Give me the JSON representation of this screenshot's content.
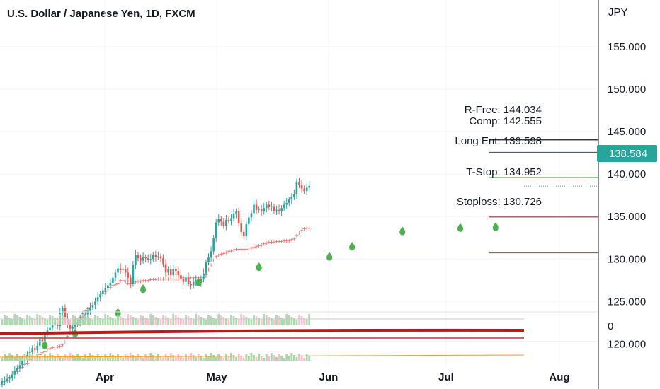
{
  "header": {
    "title": "U.S. Dollar / Japanese Yen, 1D, FXCM",
    "currency": "JPY"
  },
  "current_price": "138.584",
  "indicator": {
    "zero_label": "0"
  },
  "levels": [
    {
      "label": "R-Free: 144.034",
      "value": 144.034,
      "color": "#131722"
    },
    {
      "label": "Comp: 142.555",
      "value": 142.555,
      "color": "#3b5ba5"
    },
    {
      "label": "Long Ent: 139.598",
      "value": 139.598,
      "color": "#4caf50"
    },
    {
      "label": "T-Stop: 134.952",
      "value": 134.952,
      "color": "#8b3a3a"
    },
    {
      "label": "Stoploss: 130.726",
      "value": 130.726,
      "color": "#e53935"
    }
  ],
  "colors": {
    "up": "#26a69a",
    "down": "#ef5350",
    "signal": "#4caf50",
    "trail": "#ef5350",
    "price_tag": "#26a69a"
  },
  "chart_data": {
    "type": "candlestick",
    "title": "U.S. Dollar / Japanese Yen, 1D, FXCM",
    "ylabel": "JPY",
    "ylim": [
      114.7,
      160.5
    ],
    "y_ticks": [
      "155.000",
      "150.000",
      "145.000",
      "140.000",
      "135.000",
      "130.000",
      "125.000",
      "120.000"
    ],
    "x_ticks": [
      "Apr",
      "May",
      "Jun",
      "Jul",
      "Aug"
    ],
    "close": [
      115.6,
      115.7,
      115.9,
      116.0,
      116.4,
      116.8,
      117.2,
      117.5,
      118.0,
      118.3,
      118.7,
      119.1,
      119.5,
      119.3,
      119.8,
      120.5,
      120.2,
      121.2,
      121.6,
      121.9,
      122.3,
      122.6,
      122.1,
      123.6,
      124.2,
      123.0,
      122.2,
      121.8,
      122.0,
      122.3,
      122.6,
      122.9,
      123.3,
      123.5,
      123.9,
      124.3,
      124.6,
      125.0,
      125.5,
      125.9,
      126.3,
      126.6,
      126.9,
      127.2,
      127.8,
      128.4,
      128.9,
      128.7,
      128.8,
      128.4,
      127.8,
      127.1,
      129.3,
      130.5,
      130.1,
      129.8,
      130.2,
      130.1,
      129.9,
      130.0,
      130.5,
      130.2,
      130.3,
      130.1,
      129.4,
      128.4,
      128.8,
      128.1,
      128.8,
      128.6,
      128.1,
      127.7,
      127.3,
      127.8,
      127.1,
      126.9,
      127.3,
      127.5,
      127.2,
      127.6,
      128.3,
      129.6,
      130.2,
      130.9,
      132.5,
      134.3,
      134.7,
      134.4,
      133.9,
      134.6,
      134.5,
      134.8,
      135.3,
      135.6,
      134.2,
      133.2,
      132.7,
      134.1,
      134.9,
      135.4,
      136.4,
      135.8,
      135.9,
      135.6,
      136.0,
      136.4,
      136.1,
      136.2,
      135.7,
      135.8,
      135.6,
      136.0,
      136.4,
      136.6,
      137.0,
      137.3,
      137.6,
      139.1,
      138.7,
      138.3,
      138.0,
      138.4,
      138.6
    ],
    "trailing_stop": [
      115.3,
      115.6,
      115.8,
      116.1,
      116.3,
      116.6,
      116.8,
      117.1,
      117.3,
      117.6,
      117.8,
      118.2,
      118.3,
      118.5,
      118.6,
      118.8,
      119.0,
      119.2,
      119.4,
      119.5,
      119.6,
      119.7,
      119.7,
      119.8,
      119.9,
      120.3,
      120.9,
      121.3,
      121.9,
      122.4,
      122.8,
      123.2,
      123.6,
      123.9,
      124.2,
      124.5,
      124.8,
      125.1,
      125.4,
      125.7,
      126.0,
      126.2,
      126.5,
      126.7,
      126.9,
      127.0,
      127.2,
      127.5,
      127.5,
      127.4,
      127.2,
      127.1,
      127.2,
      127.3,
      127.4,
      127.4,
      127.5,
      127.5,
      127.5,
      127.6,
      127.6,
      127.6,
      127.7,
      127.7,
      127.7,
      127.7,
      127.7,
      127.7,
      127.7,
      127.7,
      127.7,
      127.7,
      127.8,
      127.8,
      127.8,
      127.8,
      127.8,
      127.8,
      127.8,
      127.8,
      127.8,
      128.2,
      128.8,
      129.3,
      129.9,
      130.3,
      130.5,
      130.6,
      130.7,
      130.8,
      130.9,
      131.0,
      131.1,
      131.2,
      131.2,
      131.2,
      131.2,
      131.2,
      131.3,
      131.3,
      131.4,
      131.5,
      131.6,
      131.7,
      131.8,
      131.9,
      132.0,
      132.0,
      132.0,
      132.1,
      132.1,
      132.1,
      132.2,
      132.2,
      132.2,
      132.3,
      132.4,
      132.8,
      133.1,
      133.4,
      133.6,
      133.7,
      133.7
    ],
    "signals": [
      {
        "x": 17,
        "y": 119.9
      },
      {
        "x": 29,
        "y": 121.3
      },
      {
        "x": 46,
        "y": 123.7
      },
      {
        "x": 56,
        "y": 126.5
      },
      {
        "x": 78,
        "y": 127.3
      },
      {
        "x": 102,
        "y": 129.1
      },
      {
        "x": 130,
        "y": 130.3
      },
      {
        "x": 139,
        "y": 131.5
      },
      {
        "x": 159,
        "y": 133.3
      },
      {
        "x": 182,
        "y": 133.7
      },
      {
        "x": 196,
        "y": 133.8
      }
    ],
    "volume_label": "0"
  }
}
